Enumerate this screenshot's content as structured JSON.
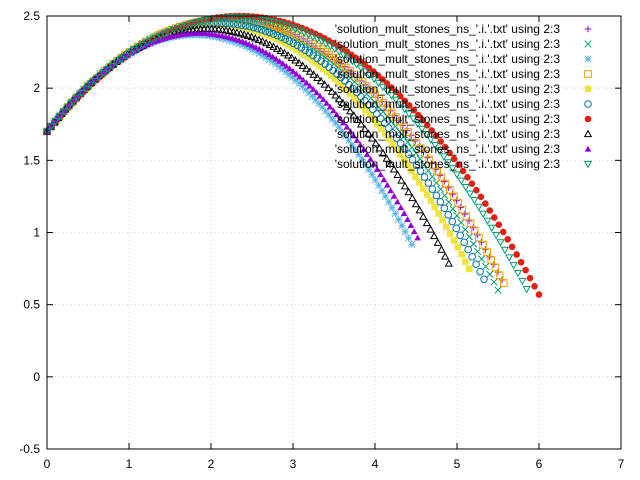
{
  "chart_data": {
    "type": "scatter",
    "title": "",
    "xlabel": "",
    "ylabel": "",
    "xlim": [
      0,
      7
    ],
    "ylim": [
      -0.5,
      2.5
    ],
    "xticks": [
      "0",
      "1",
      "2",
      "3",
      "4",
      "5",
      "6",
      "7"
    ],
    "yticks": [
      "-0.5",
      "0",
      "0.5",
      "1",
      "1.5",
      "2",
      "2.5"
    ],
    "grid": true,
    "legend_position": "top-right",
    "series": [
      {
        "name": "'solution_mult_stones_ns_'.i.'.txt' using 2:3",
        "color": "#9400d3",
        "marker": "plus",
        "x_end": 5.55,
        "y_start": 1.7,
        "peak_x": 2.2,
        "peak_y": 2.48
      },
      {
        "name": "'solution_mult_stones_ns_'.i.'.txt' using 2:3",
        "color": "#009e73",
        "marker": "cross",
        "x_end": 5.5,
        "y_start": 1.7,
        "peak_x": 2.15,
        "peak_y": 2.47
      },
      {
        "name": "'solution_mult_stones_ns_'.i.'.txt' using 2:3",
        "color": "#56b4e9",
        "marker": "star",
        "x_end": 4.45,
        "y_start": 1.7,
        "peak_x": 1.8,
        "peak_y": 2.37
      },
      {
        "name": "'solution_mult_stones_ns_'.i.'.txt' using 2:3",
        "color": "#e69f00",
        "marker": "square-open",
        "x_end": 5.57,
        "y_start": 1.7,
        "peak_x": 2.2,
        "peak_y": 2.48
      },
      {
        "name": "'solution_mult_stones_ns_'.i.'.txt' using 2:3",
        "color": "#f0e442",
        "marker": "square-filled",
        "x_end": 5.15,
        "y_start": 1.7,
        "peak_x": 2.05,
        "peak_y": 2.44
      },
      {
        "name": "'solution_mult_stones_ns_'.i.'.txt' using 2:3",
        "color": "#0072b2",
        "marker": "circle-open",
        "x_end": 5.33,
        "y_start": 1.7,
        "peak_x": 2.1,
        "peak_y": 2.45
      },
      {
        "name": "'solution_mult_stones_ns_'.i.'.txt' using 2:3",
        "color": "#e51e10",
        "marker": "circle-filled",
        "x_end": 6.0,
        "y_start": 1.7,
        "peak_x": 2.35,
        "peak_y": 2.5
      },
      {
        "name": "'solution_mult_stones_ns_'.i.'.txt' using 2:3",
        "color": "#000000",
        "marker": "triangle-open",
        "x_end": 4.9,
        "y_start": 1.7,
        "peak_x": 1.95,
        "peak_y": 2.41
      },
      {
        "name": "'solution_mult_stones_ns_'.i.'.txt' using 2:3",
        "color": "#9400d3",
        "marker": "triangle-filled",
        "x_end": 4.52,
        "y_start": 1.7,
        "peak_x": 1.85,
        "peak_y": 2.38
      },
      {
        "name": "'solution_mult_stones_ns_'.i.'.txt' using 2:3",
        "color": "#009e73",
        "marker": "triangle-down-open",
        "x_end": 5.85,
        "y_start": 1.7,
        "peak_x": 2.3,
        "peak_y": 2.49
      }
    ]
  }
}
